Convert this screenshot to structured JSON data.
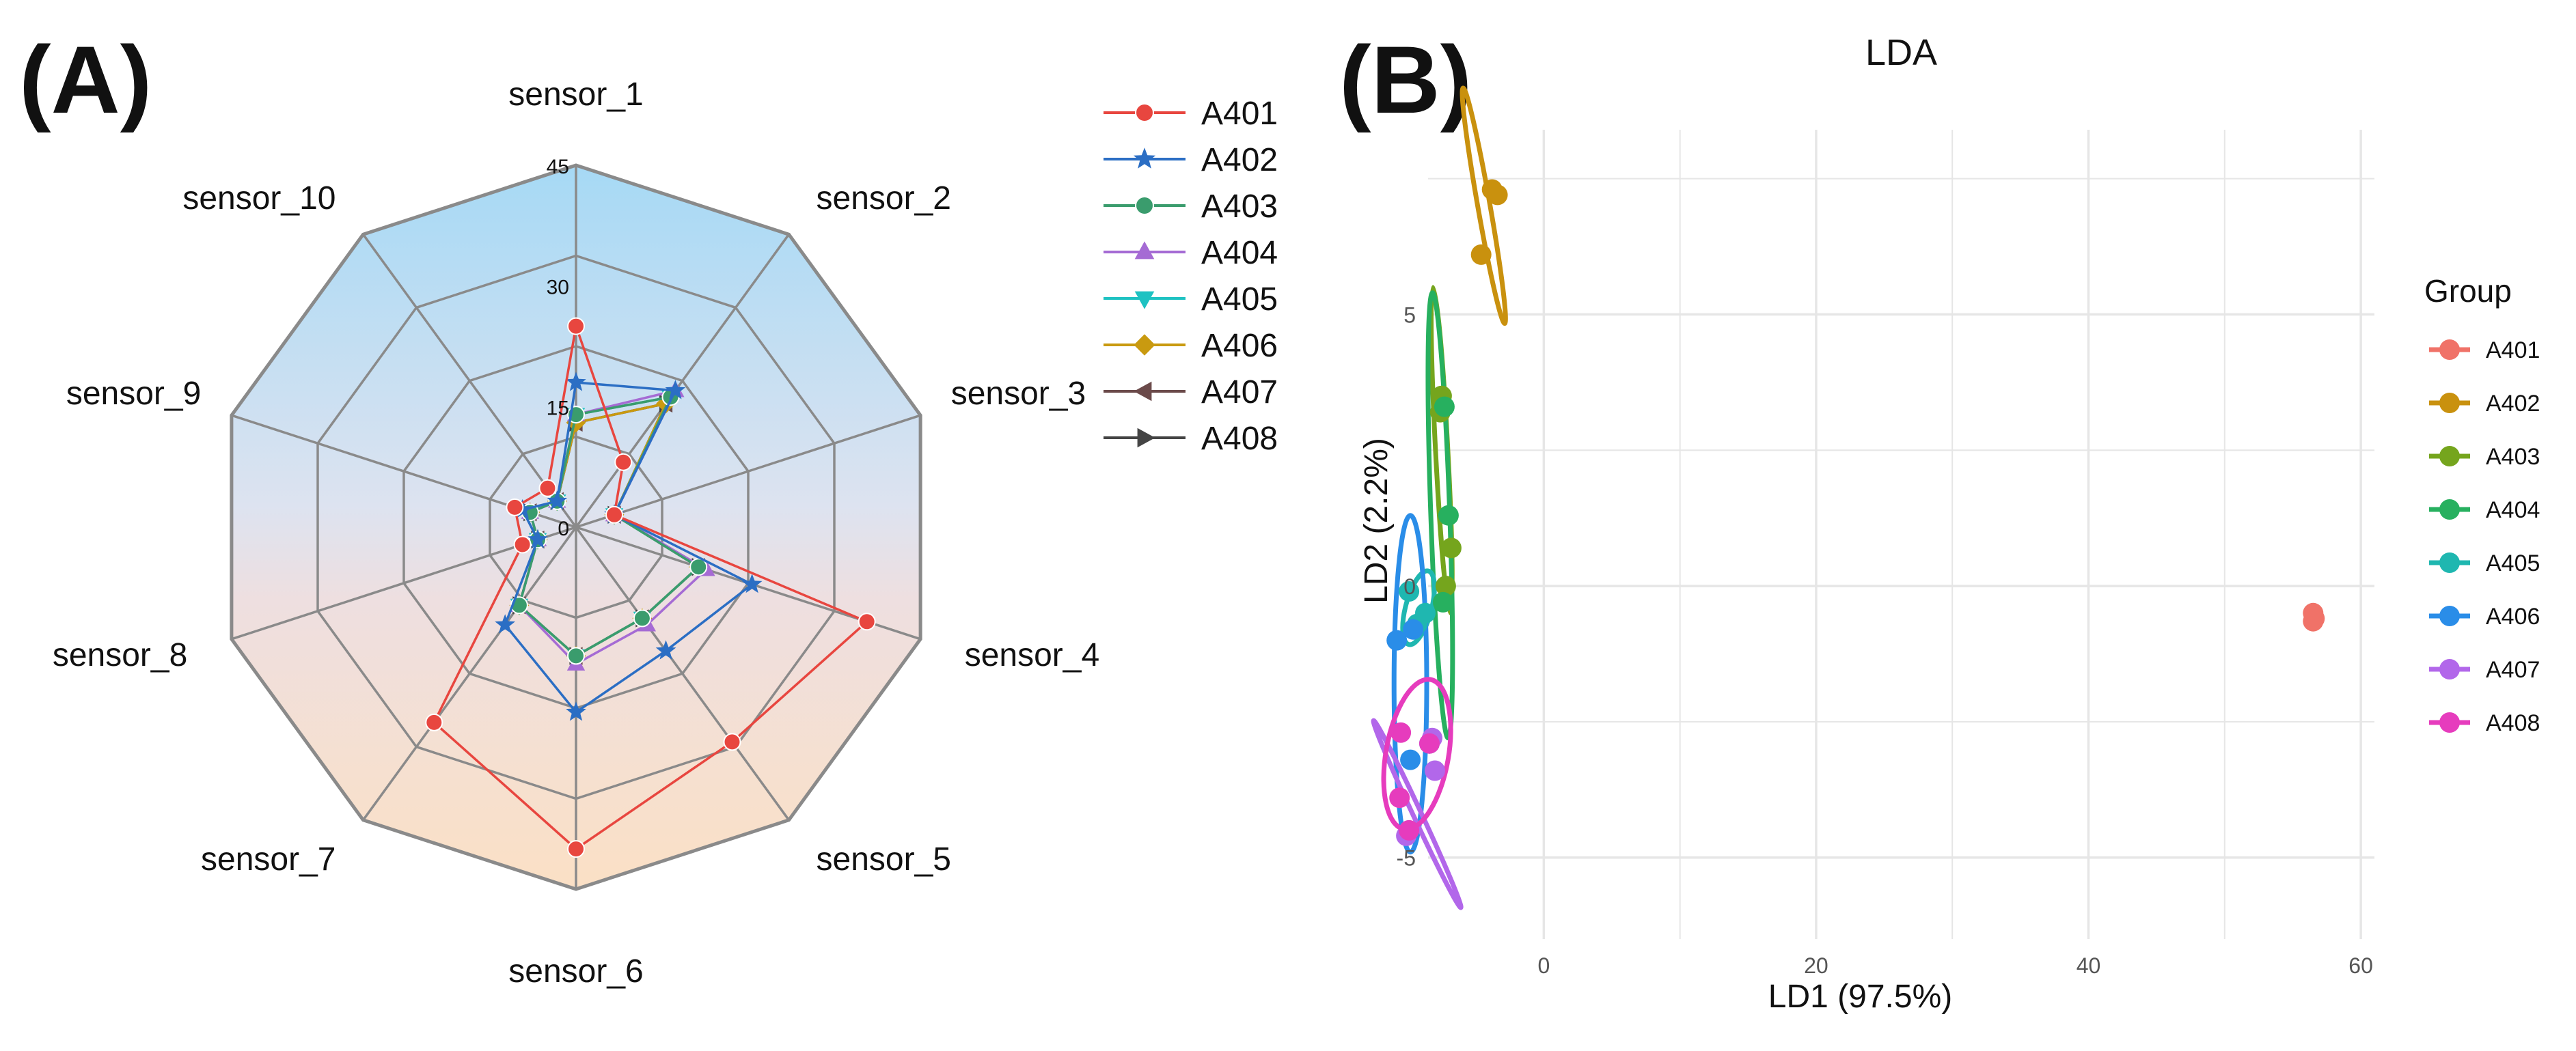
{
  "panel_a_label": "(A)",
  "panel_b_label": "(B)",
  "chart_data": [
    {
      "type": "radar",
      "axes": [
        "sensor_1",
        "sensor_2",
        "sensor_3",
        "sensor_4",
        "sensor_5",
        "sensor_6",
        "sensor_7",
        "sensor_8",
        "sensor_9",
        "sensor_10"
      ],
      "radial_ticks": [
        0,
        15,
        30,
        45
      ],
      "radial_tick_labels": [
        "0",
        "15",
        "30",
        "45"
      ],
      "rmax": 45,
      "series": [
        {
          "name": "A401",
          "color": "#e8463f",
          "marker": "circle",
          "values": [
            25,
            10,
            5,
            38,
            33,
            40,
            30,
            7,
            8,
            6
          ]
        },
        {
          "name": "A402",
          "color": "#2b6ec4",
          "marker": "star",
          "values": [
            18,
            21,
            5,
            23,
            19,
            23,
            15,
            5,
            7,
            4
          ]
        },
        {
          "name": "A403",
          "color": "#3a9c6d",
          "marker": "circle",
          "values": [
            14,
            20,
            5,
            16,
            14,
            16,
            12,
            5,
            6,
            4
          ]
        },
        {
          "name": "A404",
          "color": "#a56bd4",
          "marker": "triangle-up",
          "values": [
            14,
            21,
            5,
            17,
            15,
            17,
            12,
            5,
            6,
            4
          ]
        },
        {
          "name": "A405",
          "color": "#1ec2c2",
          "marker": "triangle-down",
          "values": [
            14,
            20,
            5,
            16,
            14,
            16,
            12,
            5,
            6,
            4
          ]
        },
        {
          "name": "A406",
          "color": "#c99a10",
          "marker": "diamond",
          "values": [
            13,
            19,
            5,
            16,
            14,
            16,
            12,
            5,
            6,
            4
          ]
        },
        {
          "name": "A407",
          "color": "#6b4a4a",
          "marker": "triangle-left",
          "values": [
            13,
            19,
            5,
            16,
            14,
            16,
            12,
            5,
            6,
            4
          ]
        },
        {
          "name": "A408",
          "color": "#444444",
          "marker": "triangle-right",
          "values": [
            13,
            19,
            5,
            16,
            14,
            16,
            12,
            5,
            6,
            4
          ]
        }
      ]
    },
    {
      "type": "scatter",
      "title": "LDA",
      "xlabel": "LD1 (97.5%)",
      "ylabel": "LD2 (2.2%)",
      "xlim": [
        -8.5,
        61
      ],
      "ylim": [
        -6.5,
        8.4
      ],
      "x_ticks": [
        0,
        20,
        40,
        60
      ],
      "x_tick_labels": [
        "0",
        "20",
        "40",
        "60"
      ],
      "y_ticks": [
        -5,
        0,
        5
      ],
      "y_tick_labels": [
        "-5",
        "0",
        "5"
      ],
      "legend_title": "Group",
      "groups": [
        {
          "name": "A401",
          "color": "#f07268",
          "points": [
            [
              56.5,
              -0.5
            ],
            [
              56.6,
              -0.6
            ],
            [
              56.5,
              -0.65
            ]
          ],
          "ellipse": null
        },
        {
          "name": "A402",
          "color": "#c9910e",
          "points": [
            [
              -3.8,
              7.3
            ],
            [
              -3.4,
              7.2
            ],
            [
              -4.6,
              6.1
            ]
          ],
          "ellipse": {
            "cx": -4.4,
            "cy": 7.0,
            "rx": 0.45,
            "ry": 2.2,
            "angle": -10
          }
        },
        {
          "name": "A403",
          "color": "#75a51d",
          "points": [
            [
              -7.5,
              3.5
            ],
            [
              -7.6,
              3.2
            ],
            [
              -6.8,
              0.7
            ],
            [
              -7.2,
              0.0
            ]
          ],
          "ellipse": {
            "cx": -7.5,
            "cy": 2.5,
            "rx": 0.45,
            "ry": 3.0,
            "angle": -3
          }
        },
        {
          "name": "A404",
          "color": "#27b05f",
          "points": [
            [
              -7.3,
              3.3
            ],
            [
              -7.0,
              1.3
            ],
            [
              -7.4,
              -0.3
            ]
          ],
          "ellipse": {
            "cx": -7.6,
            "cy": 1.3,
            "rx": 0.7,
            "ry": 4.1,
            "angle": -2
          }
        },
        {
          "name": "A405",
          "color": "#1fb7b0",
          "points": [
            [
              -9.9,
              -0.1
            ],
            [
              -9.3,
              -0.7
            ],
            [
              -8.7,
              -0.5
            ]
          ],
          "ellipse": {
            "cx": -9.2,
            "cy": -0.4,
            "rx": 0.95,
            "ry": 0.7,
            "angle": 15
          }
        },
        {
          "name": "A406",
          "color": "#2a8de8",
          "points": [
            [
              -10.8,
              -1.0
            ],
            [
              -9.6,
              -0.8
            ],
            [
              -9.8,
              -3.2
            ],
            [
              -8.4,
              -2.9
            ]
          ],
          "ellipse": {
            "cx": -9.8,
            "cy": -1.8,
            "rx": 1.2,
            "ry": 3.1,
            "angle": 0
          }
        },
        {
          "name": "A407",
          "color": "#b267ea",
          "points": [
            [
              -8.0,
              -3.4
            ],
            [
              -10.1,
              -4.6
            ],
            [
              -8.2,
              -2.8
            ]
          ],
          "ellipse": {
            "cx": -9.3,
            "cy": -4.2,
            "rx": 0.3,
            "ry": 1.9,
            "angle": -25
          }
        },
        {
          "name": "A408",
          "color": "#e63cbd",
          "points": [
            [
              -10.5,
              -2.7
            ],
            [
              -10.6,
              -3.9
            ],
            [
              -8.4,
              -2.9
            ],
            [
              -9.9,
              -4.5
            ]
          ],
          "ellipse": {
            "cx": -9.3,
            "cy": -3.1,
            "rx": 2.3,
            "ry": 1.4,
            "angle": 10
          }
        }
      ]
    }
  ]
}
